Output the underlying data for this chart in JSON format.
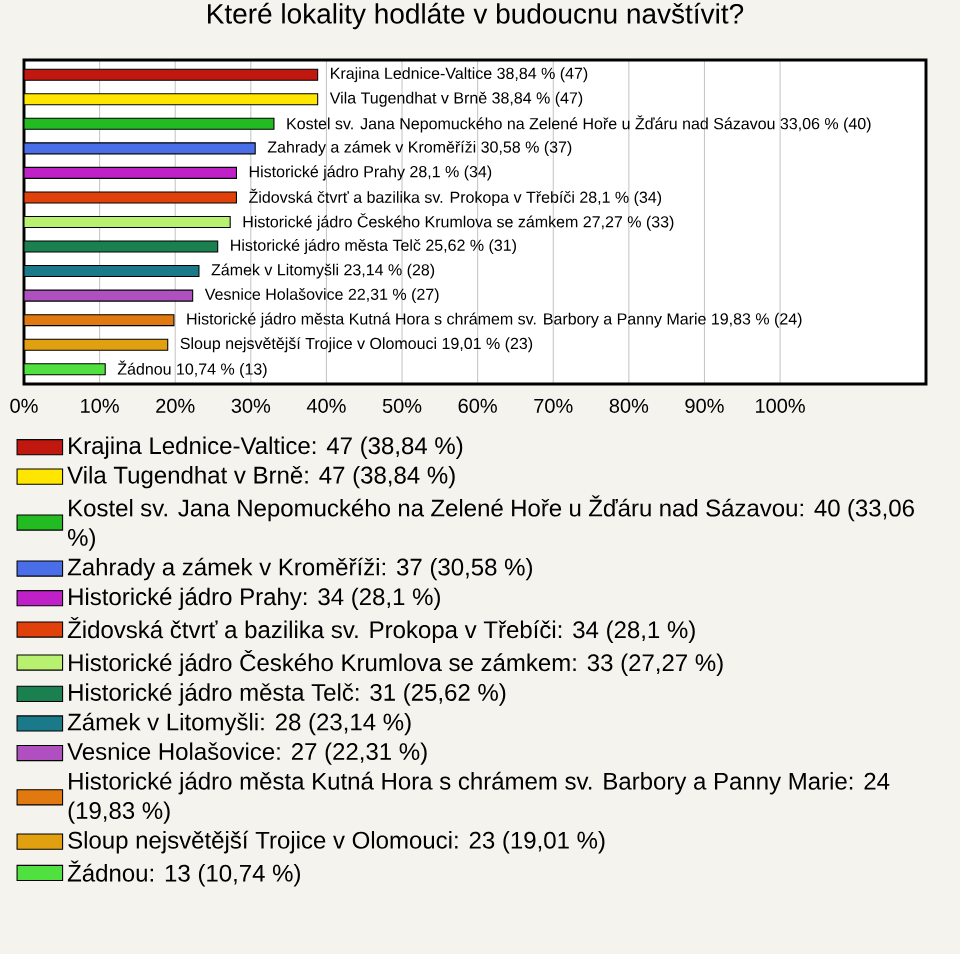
{
  "chart_data": {
    "type": "bar",
    "orientation": "horizontal",
    "title": "Které lokality hodláte v budoucnu navštívit?",
    "categories": [
      null,
      null,
      null,
      null,
      null,
      null,
      null,
      null,
      null,
      null,
      null,
      null,
      null
    ],
    "series": [
      {
        "name": "Krajina Lednice-Valtice: 47 (38,84 %)",
        "color": "#c0170f",
        "values": [
          38.84,
          null,
          null,
          null,
          null,
          null,
          null,
          null,
          null,
          null,
          null,
          null,
          null
        ],
        "value_labels": [
          "Krajina Lednice-Valtice 38,84 % (47)",
          null,
          null,
          null,
          null,
          null,
          null,
          null,
          null,
          null,
          null,
          null,
          null
        ]
      },
      {
        "name": "Vila Tugendhat v Brně: 47 (38,84 %)",
        "color": "#ffe600",
        "values": [
          null,
          38.84,
          null,
          null,
          null,
          null,
          null,
          null,
          null,
          null,
          null,
          null,
          null
        ],
        "value_labels": [
          null,
          "Vila Tugendhat v Brně 38,84 % (47)",
          null,
          null,
          null,
          null,
          null,
          null,
          null,
          null,
          null,
          null,
          null
        ]
      },
      {
        "name": "Kostel sv. Jana Nepomuckého na Zelené Hoře u Žďáru nad Sázavou: 40 (33,06 %)",
        "color": "#22bb22",
        "values": [
          null,
          null,
          33.06,
          null,
          null,
          null,
          null,
          null,
          null,
          null,
          null,
          null,
          null
        ],
        "value_labels": [
          null,
          null,
          "Kostel sv. Jana Nepomuckého na Zelené Hoře u Žďáru nad Sázavou 33,06 % (40)",
          null,
          null,
          null,
          null,
          null,
          null,
          null,
          null,
          null,
          null
        ]
      },
      {
        "name": "Zahrady a zámek v Kroměříži: 37 (30,58 %)",
        "color": "#4a6ee8",
        "values": [
          null,
          null,
          null,
          30.58,
          null,
          null,
          null,
          null,
          null,
          null,
          null,
          null,
          null
        ],
        "value_labels": [
          null,
          null,
          null,
          "Zahrady a zámek v Kroměříži 30,58 % (37)",
          null,
          null,
          null,
          null,
          null,
          null,
          null,
          null,
          null
        ]
      },
      {
        "name": "Historické jádro Prahy: 34 (28,1 %)",
        "color": "#c020c8",
        "values": [
          null,
          null,
          null,
          null,
          28.1,
          null,
          null,
          null,
          null,
          null,
          null,
          null,
          null
        ],
        "value_labels": [
          null,
          null,
          null,
          null,
          "Historické jádro Prahy 28,1 % (34)",
          null,
          null,
          null,
          null,
          null,
          null,
          null,
          null
        ]
      },
      {
        "name": "Židovská čtvrť a bazilika sv. Prokopa v Třebíči: 34 (28,1 %)",
        "color": "#e0400a",
        "values": [
          null,
          null,
          null,
          null,
          null,
          28.1,
          null,
          null,
          null,
          null,
          null,
          null,
          null
        ],
        "value_labels": [
          null,
          null,
          null,
          null,
          null,
          "Židovská čtvrť a bazilika sv. Prokopa v Třebíči 28,1 % (34)",
          null,
          null,
          null,
          null,
          null,
          null,
          null
        ]
      },
      {
        "name": "Historické jádro Českého Krumlova se zámkem: 33 (27,27 %)",
        "color": "#b8f070",
        "values": [
          null,
          null,
          null,
          null,
          null,
          null,
          27.27,
          null,
          null,
          null,
          null,
          null,
          null
        ],
        "value_labels": [
          null,
          null,
          null,
          null,
          null,
          null,
          "Historické jádro Českého Krumlova se zámkem 27,27 % (33)",
          null,
          null,
          null,
          null,
          null,
          null
        ]
      },
      {
        "name": "Historické jádro města Telč: 31 (25,62 %)",
        "color": "#1a8050",
        "values": [
          null,
          null,
          null,
          null,
          null,
          null,
          null,
          25.62,
          null,
          null,
          null,
          null,
          null
        ],
        "value_labels": [
          null,
          null,
          null,
          null,
          null,
          null,
          null,
          "Historické jádro města Telč 25,62 % (31)",
          null,
          null,
          null,
          null,
          null
        ]
      },
      {
        "name": "Zámek v Litomyšli: 28 (23,14 %)",
        "color": "#1a7a8a",
        "values": [
          null,
          null,
          null,
          null,
          null,
          null,
          null,
          null,
          23.14,
          null,
          null,
          null,
          null
        ],
        "value_labels": [
          null,
          null,
          null,
          null,
          null,
          null,
          null,
          null,
          "Zámek v Litomyšli 23,14 % (28)",
          null,
          null,
          null,
          null
        ]
      },
      {
        "name": "Vesnice Holašovice: 27 (22,31 %)",
        "color": "#b050c0",
        "values": [
          null,
          null,
          null,
          null,
          null,
          null,
          null,
          null,
          null,
          22.31,
          null,
          null,
          null
        ],
        "value_labels": [
          null,
          null,
          null,
          null,
          null,
          null,
          null,
          null,
          null,
          "Vesnice Holašovice 22,31 % (27)",
          null,
          null,
          null
        ]
      },
      {
        "name": "Historické jádro města Kutná Hora s chrámem sv. Barbory a Panny Marie: 24 (19,83 %)",
        "color": "#e07a10",
        "values": [
          null,
          null,
          null,
          null,
          null,
          null,
          null,
          null,
          null,
          null,
          19.83,
          null,
          null
        ],
        "value_labels": [
          null,
          null,
          null,
          null,
          null,
          null,
          null,
          null,
          null,
          null,
          "Historické jádro města Kutná Hora s chrámem sv. Barbory a Panny Marie 19,83 % (24)",
          null,
          null
        ]
      },
      {
        "name": "Sloup nejsvětější Trojice v Olomouci: 23 (19,01 %)",
        "color": "#e0a010",
        "values": [
          null,
          null,
          null,
          null,
          null,
          null,
          null,
          null,
          null,
          null,
          null,
          19.01,
          null
        ],
        "value_labels": [
          null,
          null,
          null,
          null,
          null,
          null,
          null,
          null,
          null,
          null,
          null,
          "Sloup nejsvětější Trojice v Olomouci 19,01 % (23)",
          null
        ]
      },
      {
        "name": "Žádnou: 13 (10,74 %)",
        "color": "#50e040",
        "values": [
          null,
          null,
          null,
          null,
          null,
          null,
          null,
          null,
          null,
          null,
          null,
          null,
          10.74
        ],
        "value_labels": [
          null,
          null,
          null,
          null,
          null,
          null,
          null,
          null,
          null,
          null,
          null,
          null,
          "Žádnou 10,74 % (13)"
        ]
      }
    ],
    "xlim": [
      0,
      119.3
    ],
    "xticks": [
      {
        "value": 0,
        "label": "0%"
      },
      {
        "value": 10,
        "label": "10%"
      },
      {
        "value": 20,
        "label": "20%"
      },
      {
        "value": 30,
        "label": "30%"
      },
      {
        "value": 40,
        "label": "40%"
      },
      {
        "value": 50,
        "label": "50%"
      },
      {
        "value": 60,
        "label": "60%"
      },
      {
        "value": 70,
        "label": "70%"
      },
      {
        "value": 80,
        "label": "80%"
      },
      {
        "value": 90,
        "label": "90%"
      },
      {
        "value": 100,
        "label": "100%"
      }
    ],
    "grid": "x",
    "legend": "bottom",
    "tick_labels": "x"
  }
}
